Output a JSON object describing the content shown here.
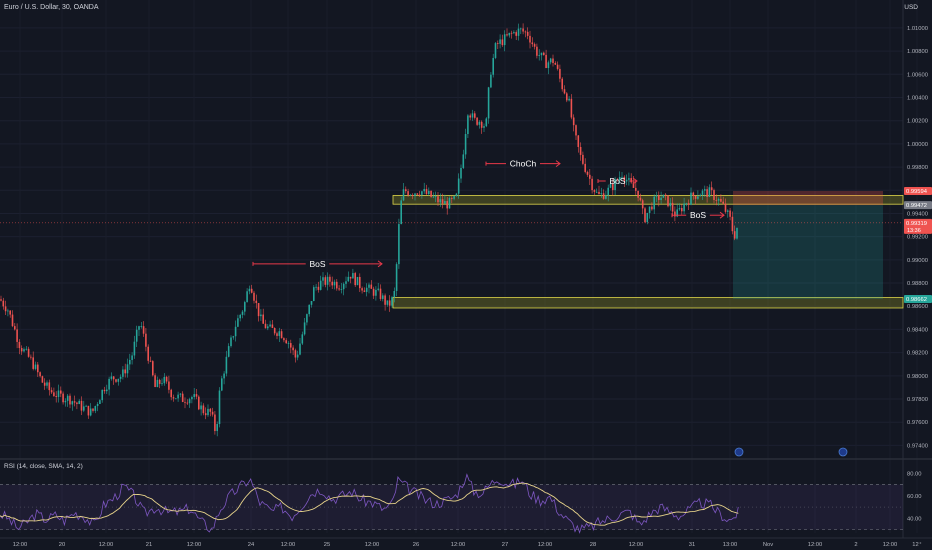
{
  "header": {
    "symbol_title": "Euro / U.S. Dollar, 30, OANDA",
    "currency": "USD"
  },
  "rsi_pane": {
    "title": "RSI (14, close, SMA, 14, 2)"
  },
  "colors": {
    "background": "#131722",
    "up_candle": "#26a69a",
    "down_candle": "#ef5350",
    "annotation_arrow": "#e8394a",
    "zone_fill": "#8d8b22",
    "zone_border": "#e0d84a",
    "rsi_line": "#7e57c2",
    "rsi_ma": "#e8d48b",
    "stop_zone": "#ef5350",
    "target_zone": "#26a69a"
  },
  "chart_data": {
    "type": "candlestick",
    "price_axis": {
      "ticks": [
        "1.01000",
        "1.00800",
        "1.00600",
        "1.00400",
        "1.00200",
        "1.00000",
        "0.99800",
        "0.99600",
        "0.99400",
        "0.99200",
        "0.99000",
        "0.98800",
        "0.98600",
        "0.98400",
        "0.98200",
        "0.98000",
        "0.97800",
        "0.97600",
        "0.97400"
      ],
      "range": [
        0.973,
        1.0112
      ]
    },
    "time_axis": {
      "ticks": [
        "12:00",
        "20",
        "12:00",
        "21",
        "12:00",
        "24",
        "12:00",
        "25",
        "12:00",
        "26",
        "12:00",
        "27",
        "12:00",
        "28",
        "12:00",
        "31",
        "13:00",
        "Nov",
        "12:00",
        "2",
        "12:00",
        "12⁺"
      ]
    },
    "price_path": [
      [
        0,
        0.9866
      ],
      [
        8,
        0.9857
      ],
      [
        20,
        0.9826
      ],
      [
        32,
        0.9812
      ],
      [
        42,
        0.9795
      ],
      [
        50,
        0.9787
      ],
      [
        58,
        0.9783
      ],
      [
        70,
        0.978
      ],
      [
        82,
        0.9773
      ],
      [
        92,
        0.9768
      ],
      [
        104,
        0.979
      ],
      [
        112,
        0.9798
      ],
      [
        122,
        0.98
      ],
      [
        132,
        0.9818
      ],
      [
        140,
        0.9847
      ],
      [
        148,
        0.9818
      ],
      [
        155,
        0.979
      ],
      [
        163,
        0.9797
      ],
      [
        173,
        0.9783
      ],
      [
        183,
        0.978
      ],
      [
        193,
        0.9782
      ],
      [
        203,
        0.977
      ],
      [
        211,
        0.9768
      ],
      [
        216,
        0.975
      ],
      [
        220,
        0.979
      ],
      [
        228,
        0.982
      ],
      [
        236,
        0.9845
      ],
      [
        244,
        0.986
      ],
      [
        250,
        0.9882
      ],
      [
        256,
        0.9862
      ],
      [
        262,
        0.9845
      ],
      [
        270,
        0.984
      ],
      [
        280,
        0.9838
      ],
      [
        288,
        0.983
      ],
      [
        296,
        0.9815
      ],
      [
        306,
        0.9848
      ],
      [
        314,
        0.9875
      ],
      [
        320,
        0.988
      ],
      [
        330,
        0.9882
      ],
      [
        340,
        0.9878
      ],
      [
        350,
        0.9888
      ],
      [
        360,
        0.9878
      ],
      [
        370,
        0.9874
      ],
      [
        380,
        0.987
      ],
      [
        388,
        0.986
      ],
      [
        394,
        0.9868
      ],
      [
        397,
        0.99
      ],
      [
        400,
        0.9945
      ],
      [
        404,
        0.996
      ],
      [
        412,
        0.9958
      ],
      [
        420,
        0.996
      ],
      [
        430,
        0.9955
      ],
      [
        440,
        0.995
      ],
      [
        448,
        0.9948
      ],
      [
        456,
        0.9952
      ],
      [
        462,
        0.9985
      ],
      [
        468,
        1.003
      ],
      [
        474,
        1.002
      ],
      [
        480,
        1.002
      ],
      [
        486,
        1.0015
      ],
      [
        490,
        1.006
      ],
      [
        496,
        1.0085
      ],
      [
        504,
        1.009
      ],
      [
        512,
        1.0095
      ],
      [
        520,
        1.0098
      ],
      [
        528,
        1.0095
      ],
      [
        536,
        1.008
      ],
      [
        546,
        1.007
      ],
      [
        554,
        1.0072
      ],
      [
        562,
        1.005
      ],
      [
        568,
        1.004
      ],
      [
        574,
        1.001
      ],
      [
        580,
        0.999
      ],
      [
        586,
        0.9978
      ],
      [
        592,
        0.9965
      ],
      [
        598,
        0.9955
      ],
      [
        606,
        0.9958
      ],
      [
        614,
        0.9965
      ],
      [
        622,
        0.9975
      ],
      [
        630,
        0.9965
      ],
      [
        638,
        0.9958
      ],
      [
        644,
        0.9935
      ],
      [
        652,
        0.9948
      ],
      [
        660,
        0.9955
      ],
      [
        668,
        0.995
      ],
      [
        676,
        0.9938
      ],
      [
        684,
        0.9948
      ],
      [
        692,
        0.9955
      ],
      [
        700,
        0.9958
      ],
      [
        710,
        0.9958
      ],
      [
        718,
        0.9952
      ],
      [
        724,
        0.9945
      ],
      [
        730,
        0.9935
      ],
      [
        734,
        0.992
      ],
      [
        739,
        0.9933
      ]
    ],
    "rsi": {
      "ticks": [
        "80.00",
        "60.00",
        "40.00"
      ],
      "levels": [
        70,
        30
      ],
      "path": [
        [
          0,
          44
        ],
        [
          8,
          40
        ],
        [
          18,
          31
        ],
        [
          26,
          36
        ],
        [
          36,
          44
        ],
        [
          46,
          39
        ],
        [
          56,
          43
        ],
        [
          64,
          38
        ],
        [
          74,
          45
        ],
        [
          84,
          42
        ],
        [
          94,
          34
        ],
        [
          104,
          52
        ],
        [
          114,
          58
        ],
        [
          124,
          68
        ],
        [
          134,
          60
        ],
        [
          144,
          44
        ],
        [
          156,
          50
        ],
        [
          168,
          45
        ],
        [
          180,
          46
        ],
        [
          190,
          49
        ],
        [
          200,
          38
        ],
        [
          212,
          30
        ],
        [
          220,
          48
        ],
        [
          230,
          60
        ],
        [
          240,
          68
        ],
        [
          250,
          75
        ],
        [
          260,
          54
        ],
        [
          272,
          46
        ],
        [
          282,
          50
        ],
        [
          292,
          42
        ],
        [
          302,
          52
        ],
        [
          312,
          63
        ],
        [
          322,
          66
        ],
        [
          332,
          57
        ],
        [
          342,
          60
        ],
        [
          352,
          64
        ],
        [
          362,
          56
        ],
        [
          372,
          54
        ],
        [
          384,
          48
        ],
        [
          392,
          52
        ],
        [
          398,
          74
        ],
        [
          406,
          68
        ],
        [
          416,
          62
        ],
        [
          426,
          56
        ],
        [
          436,
          53
        ],
        [
          446,
          56
        ],
        [
          456,
          60
        ],
        [
          466,
          78
        ],
        [
          474,
          64
        ],
        [
          482,
          62
        ],
        [
          490,
          70
        ],
        [
          498,
          76
        ],
        [
          506,
          72
        ],
        [
          514,
          70
        ],
        [
          522,
          74
        ],
        [
          530,
          62
        ],
        [
          540,
          56
        ],
        [
          550,
          59
        ],
        [
          560,
          45
        ],
        [
          570,
          36
        ],
        [
          580,
          30
        ],
        [
          590,
          32
        ],
        [
          600,
          37
        ],
        [
          610,
          40
        ],
        [
          620,
          44
        ],
        [
          630,
          46
        ],
        [
          640,
          34
        ],
        [
          650,
          44
        ],
        [
          660,
          50
        ],
        [
          670,
          46
        ],
        [
          680,
          42
        ],
        [
          690,
          48
        ],
        [
          700,
          54
        ],
        [
          710,
          52
        ],
        [
          720,
          44
        ],
        [
          730,
          38
        ],
        [
          739,
          46
        ]
      ]
    },
    "zones": [
      {
        "name": "upper-supply-zone",
        "from": 0.9948,
        "to": 0.99555
      },
      {
        "name": "lower-demand-zone",
        "from": 0.98585,
        "to": 0.98675
      }
    ],
    "position": {
      "stop": 0.99594,
      "entry": 0.99472,
      "target": 0.98662
    },
    "price_labels": [
      {
        "value": 0.99594,
        "text": "0.99594",
        "kind": "stop"
      },
      {
        "value": 0.99472,
        "text": "0.99472",
        "kind": "entry"
      },
      {
        "value": 0.99319,
        "text": "0.99319",
        "kind": "last",
        "sub": "13:36"
      },
      {
        "value": 0.98662,
        "text": "0.98662",
        "kind": "target"
      }
    ],
    "annotations": [
      {
        "text": "BoS",
        "line_from": 253,
        "line_to": 382,
        "price": 0.98965
      },
      {
        "text": "ChoCh",
        "line_from": 486,
        "line_to": 560,
        "price": 0.9983
      },
      {
        "text": "BoS",
        "line_from": 598,
        "line_to": 637,
        "price": 0.9968
      },
      {
        "text": "BoS",
        "line_from": 672,
        "line_to": 724,
        "price": 0.99385
      }
    ]
  }
}
